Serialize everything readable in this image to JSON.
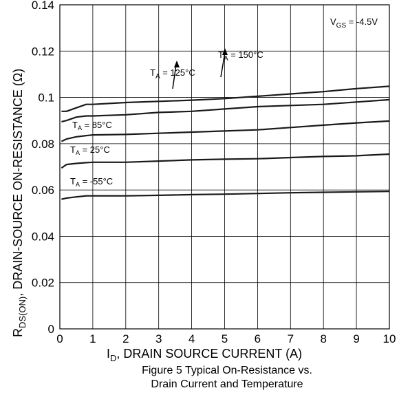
{
  "chart_data": {
    "type": "line",
    "title": "",
    "xlabel": {
      "main": "I",
      "sub": "D",
      "rest": ", DRAIN SOURCE CURRENT (A)"
    },
    "ylabel": {
      "main": "R",
      "sub": "DS(ON)",
      "rest": ",  DRAIN-SOURCE ON-RESISTANCE (Ω)"
    },
    "xlim": [
      0,
      10
    ],
    "ylim": [
      0,
      0.14
    ],
    "x_ticks": [
      0,
      1,
      2,
      3,
      4,
      5,
      6,
      7,
      8,
      9,
      10
    ],
    "x_tick_labels": [
      "0",
      "1",
      "2",
      "3",
      "4",
      "5",
      "6",
      "7",
      "8",
      "9",
      "10"
    ],
    "y_ticks": [
      0,
      0.02,
      0.04,
      0.06,
      0.08,
      0.1,
      0.12,
      0.14
    ],
    "y_tick_labels": [
      "0",
      "0.02",
      "0.04",
      "0.06",
      "0.08",
      "0.1",
      "0.12",
      "0.14"
    ],
    "grid": true,
    "condition": {
      "main": "V",
      "sub": "GS",
      "rest": " = -4.5V"
    },
    "series": [
      {
        "name": "T_A = 150°C",
        "x": [
          0.05,
          0.2,
          0.5,
          0.8,
          1,
          2,
          3,
          4,
          5,
          6,
          7,
          8,
          9,
          10
        ],
        "y": [
          0.094,
          0.094,
          0.0955,
          0.097,
          0.097,
          0.0978,
          0.0983,
          0.0988,
          0.0995,
          0.1005,
          0.1015,
          0.1025,
          0.1038,
          0.1048
        ]
      },
      {
        "name": "T_A = 125°C",
        "x": [
          0.05,
          0.2,
          0.5,
          0.8,
          1,
          2,
          3,
          4,
          5,
          6,
          7,
          8,
          9,
          10
        ],
        "y": [
          0.0895,
          0.09,
          0.0915,
          0.092,
          0.092,
          0.0925,
          0.0935,
          0.094,
          0.095,
          0.096,
          0.0965,
          0.097,
          0.098,
          0.099
        ]
      },
      {
        "name": "T_A = 85°C",
        "x": [
          0.05,
          0.2,
          0.5,
          0.8,
          1,
          2,
          3,
          4,
          5,
          6,
          7,
          8,
          9,
          10
        ],
        "y": [
          0.081,
          0.082,
          0.083,
          0.0835,
          0.0838,
          0.084,
          0.0845,
          0.085,
          0.0855,
          0.086,
          0.087,
          0.088,
          0.089,
          0.0898
        ]
      },
      {
        "name": "T_A = 25°C",
        "x": [
          0.05,
          0.2,
          0.5,
          0.8,
          1,
          2,
          3,
          4,
          5,
          6,
          7,
          8,
          9,
          10
        ],
        "y": [
          0.0695,
          0.071,
          0.0715,
          0.0718,
          0.072,
          0.072,
          0.0725,
          0.073,
          0.0733,
          0.0735,
          0.074,
          0.0745,
          0.0748,
          0.0755
        ]
      },
      {
        "name": "T_A = -55°C",
        "x": [
          0.05,
          0.2,
          0.5,
          0.8,
          1,
          2,
          3,
          4,
          5,
          6,
          7,
          8,
          9,
          10
        ],
        "y": [
          0.056,
          0.0565,
          0.057,
          0.0575,
          0.0575,
          0.0575,
          0.0577,
          0.058,
          0.0582,
          0.0585,
          0.0588,
          0.059,
          0.0592,
          0.0594
        ]
      }
    ],
    "annotations": [
      {
        "main": "T",
        "sub": "A",
        "rest": " = 150°C"
      },
      {
        "main": "T",
        "sub": "A",
        "rest": " = 125°C"
      },
      {
        "main": "T",
        "sub": "A",
        "rest": " = 85°C"
      },
      {
        "main": "T",
        "sub": "A",
        "rest": " = 25°C"
      },
      {
        "main": "T",
        "sub": "A",
        "rest": " = -55°C"
      }
    ]
  },
  "caption": {
    "line1": "Figure 5 Typical On-Resistance vs.",
    "line2": "Drain Current and Temperature"
  }
}
